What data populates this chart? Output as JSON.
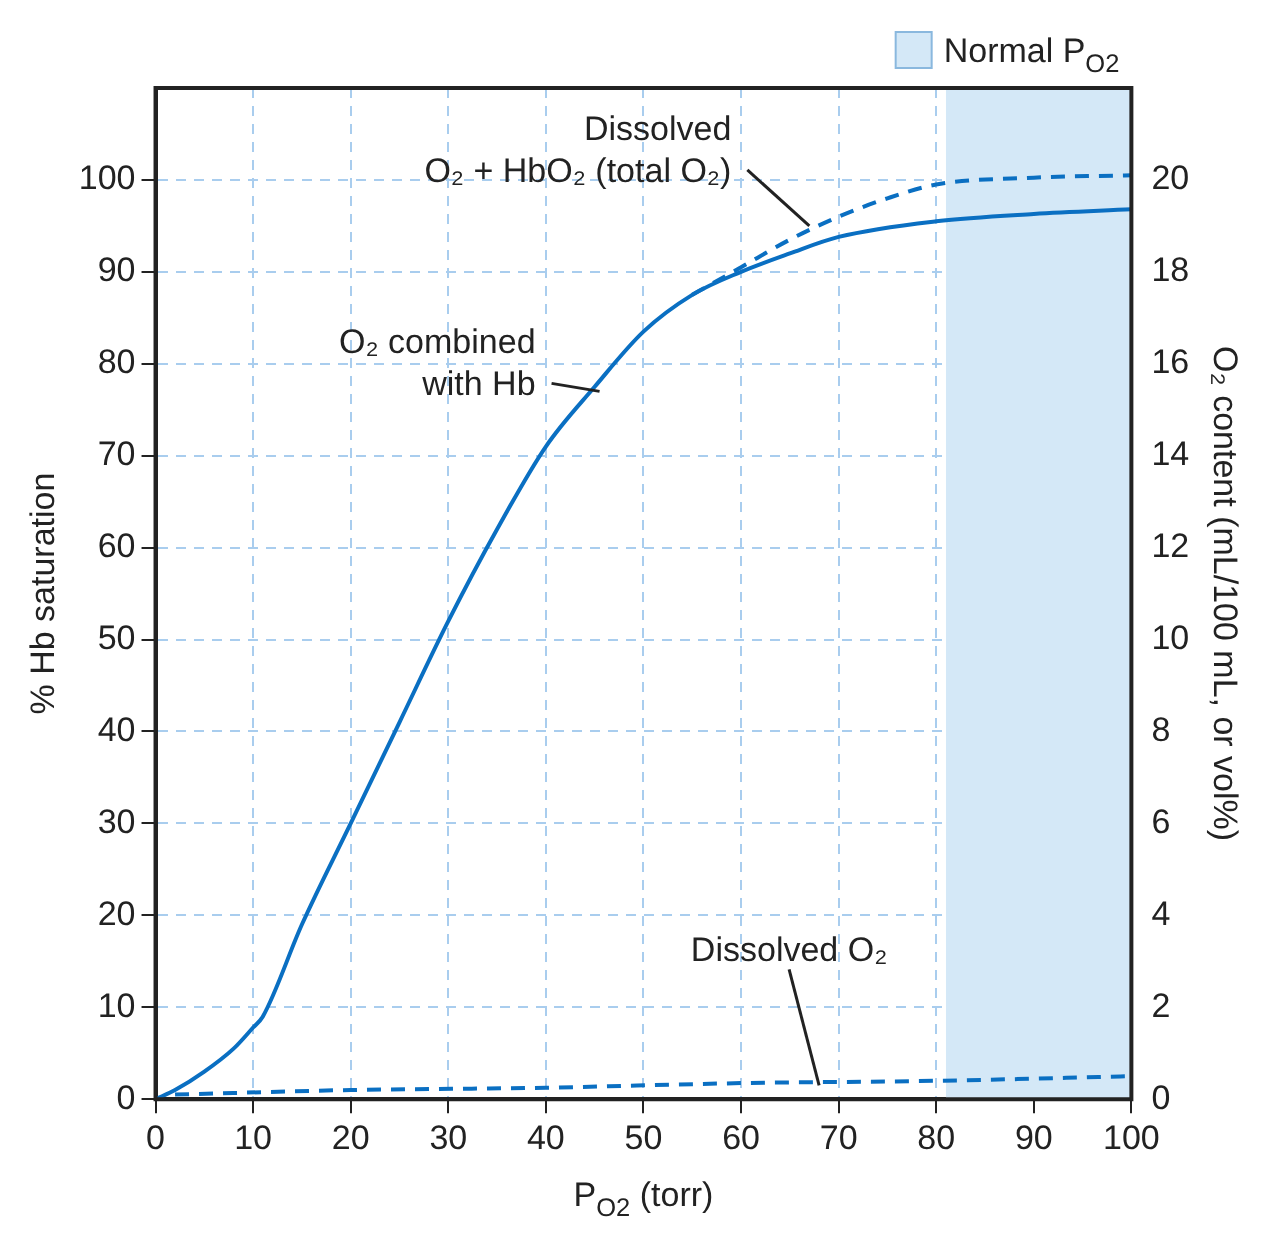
{
  "chart_data": {
    "type": "line",
    "xlabel": "P$_{O2}$ (torr)",
    "ylabel": "% Hb saturation",
    "y2label": "O₂ content (mL/100 mL, or vol%)",
    "xlim": [
      0,
      100
    ],
    "xticks": [
      0,
      10,
      20,
      30,
      40,
      50,
      60,
      70,
      80,
      90,
      100
    ],
    "ylim": [
      0,
      110
    ],
    "yticks": [
      0,
      10,
      20,
      30,
      40,
      50,
      60,
      70,
      80,
      90,
      100
    ],
    "y2lim": [
      0,
      22
    ],
    "y2ticks": [
      0,
      2,
      4,
      6,
      8,
      10,
      12,
      14,
      16,
      18,
      20
    ],
    "grid": true,
    "legend": "top right",
    "marker": "none",
    "series": [
      {
        "color": "#0a6fc2",
        "line_style": "solid",
        "axis": "y",
        "x": [
          0,
          2,
          5,
          8,
          10,
          11,
          15,
          20,
          25,
          30,
          35,
          40,
          45,
          50,
          55,
          60,
          65,
          70,
          80,
          90,
          100
        ],
        "values": [
          0,
          1,
          3,
          5.5,
          7.8,
          9,
          19,
          30,
          41,
          52,
          62,
          71,
          77.5,
          83.5,
          87.5,
          90,
          92,
          93.8,
          95.5,
          96.3,
          96.8
        ]
      },
      {
        "color": "#0a6fc2",
        "line_style": "dashed",
        "axis": "y2",
        "x": [
          55,
          60,
          65,
          70,
          75,
          80,
          90,
          100
        ],
        "values": [
          17.5,
          18.1,
          18.7,
          19.2,
          19.6,
          19.9,
          20.05,
          20.1
        ]
      },
      {
        "color": "#0a6fc2",
        "line_style": "dashed",
        "axis": "y2",
        "x": [
          2,
          20,
          40,
          60,
          80,
          100
        ],
        "values": [
          0.1,
          0.2,
          0.25,
          0.35,
          0.4,
          0.5
        ]
      }
    ],
    "bands": [
      {
        "axis": "x",
        "from": 81,
        "to": 100,
        "label": "Normal P$_{O2}$",
        "color": "#d4e8f7"
      }
    ],
    "annotations": [
      {
        "text": "Dissolved\nO₂ + HbO₂ (total O₂)",
        "x": 67,
        "y": 95
      },
      {
        "text": "O₂ combined\nwith Hb",
        "x": 45.5,
        "y": 77
      },
      {
        "text": "Dissolved O₂",
        "x": 68,
        "y": 1.5
      }
    ]
  }
}
